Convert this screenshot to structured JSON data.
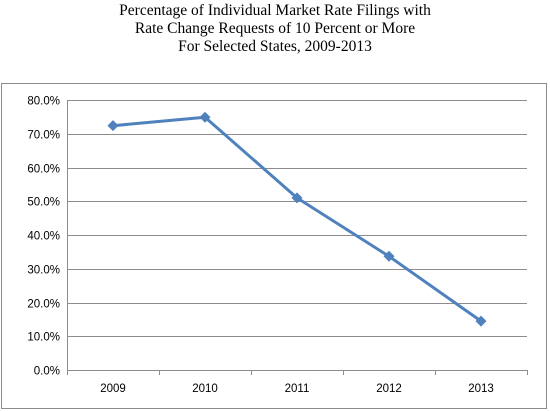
{
  "chart_data": {
    "type": "line",
    "title_lines": [
      "Percentage of Individual Market Rate Filings with",
      "Rate Change Requests of 10 Percent or More",
      "For Selected States, 2009-2013"
    ],
    "categories": [
      "2009",
      "2010",
      "2011",
      "2012",
      "2013"
    ],
    "series": [
      {
        "values": [
          72.4,
          74.9,
          51.0,
          33.7,
          14.5
        ]
      }
    ],
    "ylim": [
      0,
      80
    ],
    "yticks": [
      0,
      10,
      20,
      30,
      40,
      50,
      60,
      70,
      80
    ],
    "ytick_labels": [
      "0.0%",
      "10.0%",
      "20.0%",
      "30.0%",
      "40.0%",
      "50.0%",
      "60.0%",
      "70.0%",
      "80.0%"
    ],
    "grid": true,
    "legend": "none",
    "line_color": "#4f81bd",
    "grid_color": "#8c8c8c"
  }
}
